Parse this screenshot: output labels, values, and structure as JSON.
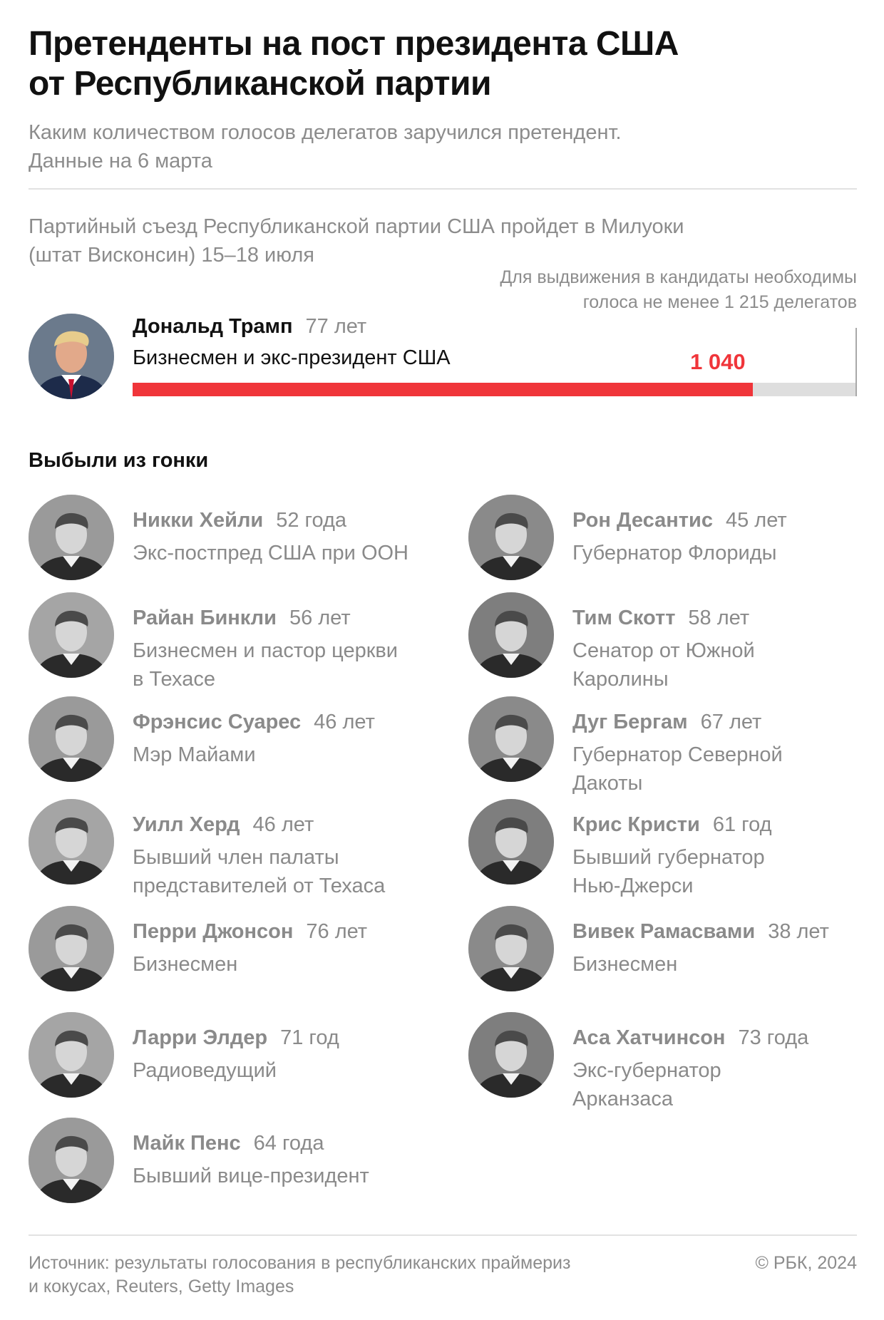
{
  "header": {
    "title_line1": "Претенденты на пост президента США",
    "title_line2": "от Республиканской партии",
    "subtitle_line1": "Каким количеством голосов делегатов заручился претендент.",
    "subtitle_line2": "Данные на 6 марта"
  },
  "note": {
    "line1": "Партийный съезд Республиканской партии США пройдет в Милуоки",
    "line2": "(штат Висконсин) 15–18 июля"
  },
  "threshold_note": {
    "line1": "Для выдвижения в кандидаты необходимы",
    "line2": "голоса не менее 1 215 делегатов"
  },
  "leader": {
    "name": "Дональд Трамп",
    "age": "77 лет",
    "role": "Бизнесмен и экс-президент США",
    "value_label": "1 040"
  },
  "chart_data": {
    "type": "bar",
    "orientation": "horizontal",
    "categories": [
      "Дональд Трамп"
    ],
    "values": [
      1040
    ],
    "threshold": 1215,
    "xlim": [
      0,
      1215
    ],
    "colors": {
      "bar": "#f0353a",
      "track": "#dedede",
      "threshold_line": "#a9a9a9"
    }
  },
  "section_title": "Выбыли из гонки",
  "dropped": [
    {
      "name": "Никки Хейли",
      "age": "52 года",
      "role_lines": [
        "Экс-постпред США при ООН"
      ]
    },
    {
      "name": "Рон Десантис",
      "age": "45 лет",
      "role_lines": [
        "Губернатор Флориды"
      ]
    },
    {
      "name": "Райан Бинкли",
      "age": "56 лет",
      "role_lines": [
        "Бизнесмен и пастор церкви",
        "в Техасе"
      ]
    },
    {
      "name": "Тим Скотт",
      "age": "58 лет",
      "role_lines": [
        "Сенатор от Южной",
        "Каролины"
      ]
    },
    {
      "name": "Фрэнсис Суарес",
      "age": "46 лет",
      "role_lines": [
        "Мэр Майами"
      ]
    },
    {
      "name": "Дуг Бергам",
      "age": "67 лет",
      "role_lines": [
        "Губернатор Северной",
        "Дакоты"
      ]
    },
    {
      "name": "Уилл Херд",
      "age": "46 лет",
      "role_lines": [
        "Бывший член палаты",
        "представителей от Техаса"
      ]
    },
    {
      "name": "Крис Кристи",
      "age": "61 год",
      "role_lines": [
        "Бывший губернатор",
        "Нью-Джерси"
      ]
    },
    {
      "name": "Перри Джонсон",
      "age": "76 лет",
      "role_lines": [
        "Бизнесмен"
      ]
    },
    {
      "name": "Вивек Рамасвами",
      "age": "38 лет",
      "role_lines": [
        "Бизнесмен"
      ]
    },
    {
      "name": "Ларри Элдер",
      "age": "71 год",
      "role_lines": [
        "Радиоведущий"
      ]
    },
    {
      "name": "Аса Хатчинсон",
      "age": "73 года",
      "role_lines": [
        "Экс-губернатор",
        "Арканзаса"
      ]
    },
    {
      "name": "Майк Пенс",
      "age": "64 года",
      "role_lines": [
        "Бывший вице-президент"
      ]
    }
  ],
  "footer": {
    "source_line1": "Источник: результаты голосования в республиканских праймериз",
    "source_line2": "и кокусах, Reuters, Getty Images",
    "copyright": "© РБК, 2024"
  }
}
